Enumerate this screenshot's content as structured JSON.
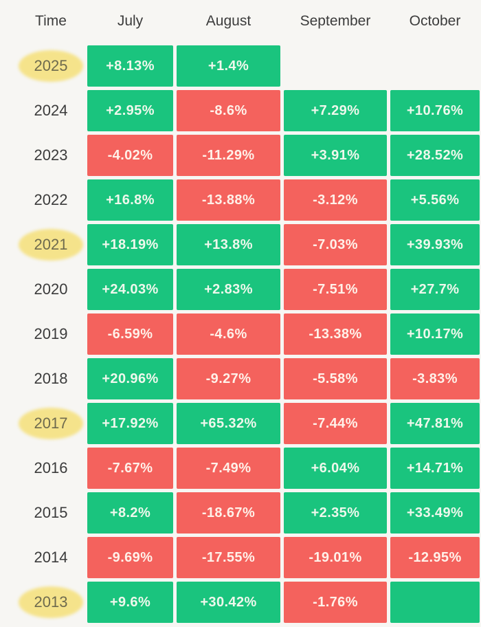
{
  "colors": {
    "page_bg": "#f7f6f3",
    "green": "#1ac47e",
    "red": "#f4625d",
    "header_text": "#3c3c3c",
    "year_text": "#3b3b3b",
    "highlight": "#f5e38b",
    "highlight_text": "#6e6a4e"
  },
  "table": {
    "headers": [
      "Time",
      "July",
      "August",
      "September",
      "October"
    ],
    "rows": [
      {
        "year": "2025",
        "highlight": true,
        "cells": [
          {
            "text": "+8.13%",
            "tone": "green"
          },
          {
            "text": "+1.4%",
            "tone": "green"
          },
          {
            "text": "",
            "tone": "none"
          },
          {
            "text": "",
            "tone": "none"
          }
        ]
      },
      {
        "year": "2024",
        "highlight": false,
        "cells": [
          {
            "text": "+2.95%",
            "tone": "green"
          },
          {
            "text": "-8.6%",
            "tone": "red"
          },
          {
            "text": "+7.29%",
            "tone": "green"
          },
          {
            "text": "+10.76%",
            "tone": "green"
          }
        ]
      },
      {
        "year": "2023",
        "highlight": false,
        "cells": [
          {
            "text": "-4.02%",
            "tone": "red"
          },
          {
            "text": "-11.29%",
            "tone": "red"
          },
          {
            "text": "+3.91%",
            "tone": "green"
          },
          {
            "text": "+28.52%",
            "tone": "green"
          }
        ]
      },
      {
        "year": "2022",
        "highlight": false,
        "cells": [
          {
            "text": "+16.8%",
            "tone": "green"
          },
          {
            "text": "-13.88%",
            "tone": "red"
          },
          {
            "text": "-3.12%",
            "tone": "red"
          },
          {
            "text": "+5.56%",
            "tone": "green"
          }
        ]
      },
      {
        "year": "2021",
        "highlight": true,
        "cells": [
          {
            "text": "+18.19%",
            "tone": "green"
          },
          {
            "text": "+13.8%",
            "tone": "green"
          },
          {
            "text": "-7.03%",
            "tone": "red"
          },
          {
            "text": "+39.93%",
            "tone": "green"
          }
        ]
      },
      {
        "year": "2020",
        "highlight": false,
        "cells": [
          {
            "text": "+24.03%",
            "tone": "green"
          },
          {
            "text": "+2.83%",
            "tone": "green"
          },
          {
            "text": "-7.51%",
            "tone": "red"
          },
          {
            "text": "+27.7%",
            "tone": "green"
          }
        ]
      },
      {
        "year": "2019",
        "highlight": false,
        "cells": [
          {
            "text": "-6.59%",
            "tone": "red"
          },
          {
            "text": "-4.6%",
            "tone": "red"
          },
          {
            "text": "-13.38%",
            "tone": "red"
          },
          {
            "text": "+10.17%",
            "tone": "green"
          }
        ]
      },
      {
        "year": "2018",
        "highlight": false,
        "cells": [
          {
            "text": "+20.96%",
            "tone": "green"
          },
          {
            "text": "-9.27%",
            "tone": "red"
          },
          {
            "text": "-5.58%",
            "tone": "red"
          },
          {
            "text": "-3.83%",
            "tone": "red"
          }
        ]
      },
      {
        "year": "2017",
        "highlight": true,
        "cells": [
          {
            "text": "+17.92%",
            "tone": "green"
          },
          {
            "text": "+65.32%",
            "tone": "green"
          },
          {
            "text": "-7.44%",
            "tone": "red"
          },
          {
            "text": "+47.81%",
            "tone": "green"
          }
        ]
      },
      {
        "year": "2016",
        "highlight": false,
        "cells": [
          {
            "text": "-7.67%",
            "tone": "red"
          },
          {
            "text": "-7.49%",
            "tone": "red"
          },
          {
            "text": "+6.04%",
            "tone": "green"
          },
          {
            "text": "+14.71%",
            "tone": "green"
          }
        ]
      },
      {
        "year": "2015",
        "highlight": false,
        "cells": [
          {
            "text": "+8.2%",
            "tone": "green"
          },
          {
            "text": "-18.67%",
            "tone": "red"
          },
          {
            "text": "+2.35%",
            "tone": "green"
          },
          {
            "text": "+33.49%",
            "tone": "green"
          }
        ]
      },
      {
        "year": "2014",
        "highlight": false,
        "cells": [
          {
            "text": "-9.69%",
            "tone": "red"
          },
          {
            "text": "-17.55%",
            "tone": "red"
          },
          {
            "text": "-19.01%",
            "tone": "red"
          },
          {
            "text": "-12.95%",
            "tone": "red"
          }
        ]
      },
      {
        "year": "2013",
        "highlight": true,
        "cells": [
          {
            "text": "+9.6%",
            "tone": "green"
          },
          {
            "text": "+30.42%",
            "tone": "green"
          },
          {
            "text": "-1.76%",
            "tone": "red"
          },
          {
            "text": "",
            "tone": "green"
          }
        ]
      }
    ]
  },
  "chart_data": {
    "type": "heatmap",
    "row_axis_label": "Time",
    "columns": [
      "July",
      "August",
      "September",
      "October"
    ],
    "years": [
      "2025",
      "2024",
      "2023",
      "2022",
      "2021",
      "2020",
      "2019",
      "2018",
      "2017",
      "2016",
      "2015",
      "2014",
      "2013"
    ],
    "values_pct": [
      [
        8.13,
        1.4,
        null,
        null
      ],
      [
        2.95,
        -8.6,
        7.29,
        10.76
      ],
      [
        -4.02,
        -11.29,
        3.91,
        28.52
      ],
      [
        16.8,
        -13.88,
        -3.12,
        5.56
      ],
      [
        18.19,
        13.8,
        -7.03,
        39.93
      ],
      [
        24.03,
        2.83,
        -7.51,
        27.7
      ],
      [
        -6.59,
        -4.6,
        -13.38,
        10.17
      ],
      [
        20.96,
        -9.27,
        -5.58,
        -3.83
      ],
      [
        17.92,
        65.32,
        -7.44,
        47.81
      ],
      [
        -7.67,
        -7.49,
        6.04,
        14.71
      ],
      [
        8.2,
        -18.67,
        2.35,
        33.49
      ],
      [
        -9.69,
        -17.55,
        -19.01,
        -12.95
      ],
      [
        9.6,
        30.42,
        -1.76,
        null
      ]
    ],
    "color_coding": {
      "positive": "#1ac47e",
      "negative": "#f4625d"
    },
    "highlighted_years": [
      "2025",
      "2021",
      "2017",
      "2013"
    ],
    "notes": "2013 October cell rendered green with no value shown; 2025 September and October cells absent."
  }
}
